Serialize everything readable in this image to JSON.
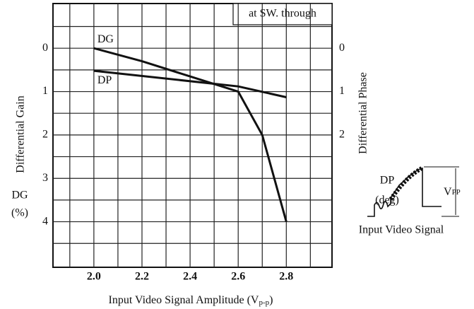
{
  "chart_data": {
    "type": "line",
    "annotation": "at SW. through",
    "ylabel": "Differential Gain",
    "ylabel_unit": [
      "DG",
      "(%)"
    ],
    "y2label": "Differential Phase",
    "xlabel": [
      "Input Video Signal Amplitude (V",
      "p-p",
      ")"
    ],
    "xlim": [
      1.83,
      2.99
    ],
    "xticks": [
      2.0,
      2.2,
      2.4,
      2.6,
      2.8
    ],
    "xgrid": [
      1.9,
      2.0,
      2.1,
      2.2,
      2.3,
      2.4,
      2.5,
      2.6,
      2.7,
      2.8,
      2.9
    ],
    "ylim": [
      -1.03,
      5.05
    ],
    "y_inverted": true,
    "yticks": [
      0,
      1,
      2,
      3,
      4
    ],
    "y2lim": [
      -1.03,
      5.05
    ],
    "y2ticks": [
      0,
      1,
      2
    ],
    "ygrid": [
      -0.5,
      0,
      0.5,
      1,
      1.5,
      2,
      2.5,
      3,
      3.5,
      4,
      4.5
    ],
    "series": [
      {
        "name": "DG",
        "color": "#111111",
        "x": [
          2.0,
          2.2,
          2.4,
          2.6,
          2.7,
          2.8
        ],
        "values": [
          0,
          0.3,
          0.65,
          1.0,
          2.0,
          4.0
        ]
      },
      {
        "name": "DP",
        "color": "#111111",
        "axis": "y2",
        "x": [
          2.0,
          2.6,
          2.8
        ],
        "values": [
          0.52,
          0.88,
          1.13
        ]
      }
    ],
    "inset": {
      "label": "DP",
      "unit": "(deg)",
      "amplitude": [
        "V",
        "PP"
      ],
      "caption": "Input Video Signal"
    }
  }
}
